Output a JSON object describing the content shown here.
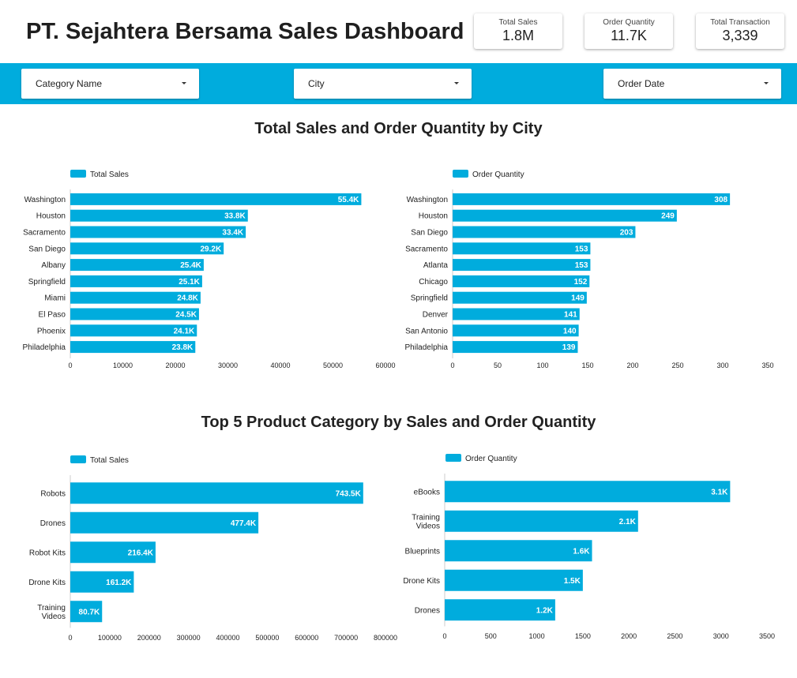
{
  "header": {
    "title": "PT. Sejahtera Bersama Sales Dashboard",
    "kpis": [
      {
        "label": "Total Sales",
        "value": "1.8M"
      },
      {
        "label": "Order Quantity",
        "value": "11.7K"
      },
      {
        "label": "Total Transaction",
        "value": "3,339"
      }
    ]
  },
  "filters": [
    {
      "label": "Category Name"
    },
    {
      "label": "City"
    },
    {
      "label": "Order Date"
    }
  ],
  "colors": {
    "bar": "#00acdd",
    "filter_bar": "#00acdd",
    "axis": "#cccccc"
  },
  "sections": {
    "city_title": "Total Sales and Order Quantity by City",
    "category_title": "Top 5 Product Category by Sales and Order Quantity"
  },
  "chart_data": [
    {
      "type": "bar",
      "orientation": "horizontal",
      "legend": "Total Sales",
      "categories": [
        "Washington",
        "Houston",
        "Sacramento",
        "San Diego",
        "Albany",
        "Springfield",
        "Miami",
        "El Paso",
        "Phoenix",
        "Philadelphia"
      ],
      "values": [
        55400,
        33800,
        33400,
        29200,
        25400,
        25100,
        24800,
        24500,
        24100,
        23800
      ],
      "value_labels": [
        "55.4K",
        "33.8K",
        "33.4K",
        "29.2K",
        "25.4K",
        "25.1K",
        "24.8K",
        "24.5K",
        "24.1K",
        "23.8K"
      ],
      "xlim": [
        0,
        60000
      ],
      "xticks": [
        "0",
        "10000",
        "20000",
        "30000",
        "40000",
        "50000",
        "60000"
      ]
    },
    {
      "type": "bar",
      "orientation": "horizontal",
      "legend": "Order Quantity",
      "categories": [
        "Washington",
        "Houston",
        "San Diego",
        "Sacramento",
        "Atlanta",
        "Chicago",
        "Springfield",
        "Denver",
        "San Antonio",
        "Philadelphia"
      ],
      "values": [
        308,
        249,
        203,
        153,
        153,
        152,
        149,
        141,
        140,
        139
      ],
      "value_labels": [
        "308",
        "249",
        "203",
        "153",
        "153",
        "152",
        "149",
        "141",
        "140",
        "139"
      ],
      "xlim": [
        0,
        350
      ],
      "xticks": [
        "0",
        "50",
        "100",
        "150",
        "200",
        "250",
        "300",
        "350"
      ]
    },
    {
      "type": "bar",
      "orientation": "horizontal",
      "legend": "Total Sales",
      "categories": [
        "Robots",
        "Drones",
        "Robot Kits",
        "Drone Kits",
        "Training Videos"
      ],
      "values": [
        743500,
        477400,
        216400,
        161200,
        80700
      ],
      "value_labels": [
        "743.5K",
        "477.4K",
        "216.4K",
        "161.2K",
        "80.7K"
      ],
      "xlim": [
        0,
        800000
      ],
      "xticks": [
        "0",
        "100000",
        "200000",
        "300000",
        "400000",
        "500000",
        "600000",
        "700000",
        "800000"
      ]
    },
    {
      "type": "bar",
      "orientation": "horizontal",
      "legend": "Order Quantity",
      "categories": [
        "eBooks",
        "Training Videos",
        "Blueprints",
        "Drone Kits",
        "Drones"
      ],
      "values": [
        3100,
        2100,
        1600,
        1500,
        1200
      ],
      "value_labels": [
        "3.1K",
        "2.1K",
        "1.6K",
        "1.5K",
        "1.2K"
      ],
      "xlim": [
        0,
        3500
      ],
      "xticks": [
        "0",
        "500",
        "1000",
        "1500",
        "2000",
        "2500",
        "3000",
        "3500"
      ]
    }
  ]
}
